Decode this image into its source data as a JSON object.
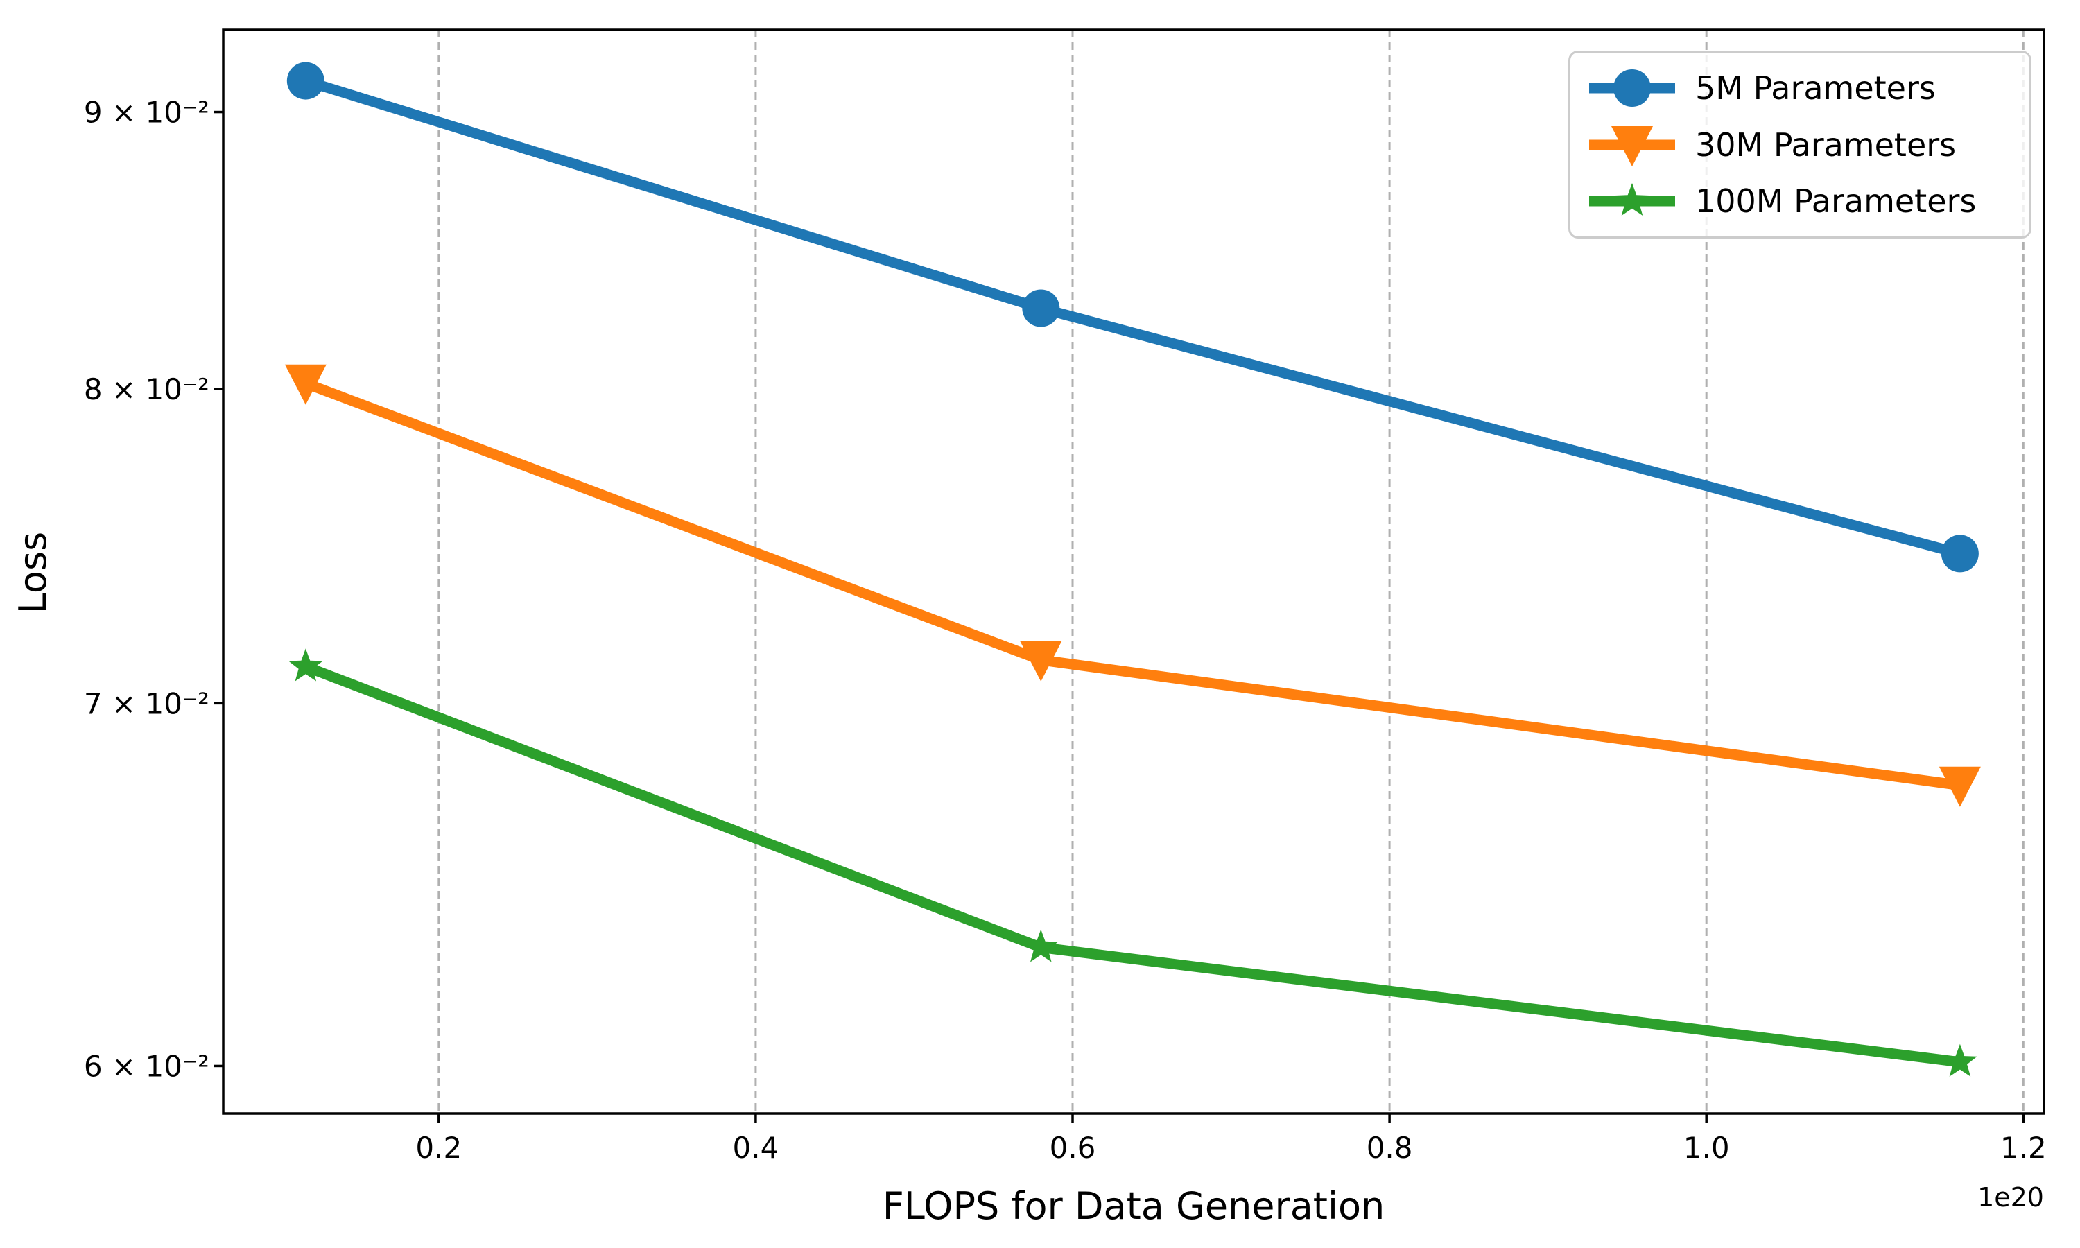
{
  "figure": {
    "background": "#ffffff",
    "spine_color": "#000000",
    "tick_color": "#000000"
  },
  "chart_data": {
    "type": "line",
    "title": "",
    "xlabel": "FLOPS for Data Generation",
    "ylabel": "Loss",
    "x_offset_text": "1e20",
    "x_scale": "linear",
    "y_scale": "log",
    "xlim": [
      6.4e+18,
      1.213e+20
    ],
    "ylim": [
      0.0588,
      0.0932
    ],
    "x_ticks": [
      2e+19,
      4e+19,
      6e+19,
      8e+19,
      1e+20,
      1.2e+20
    ],
    "x_tick_labels": [
      "0.2",
      "0.4",
      "0.6",
      "0.8",
      "1.0",
      "1.2"
    ],
    "y_ticks": [
      0.09,
      0.08,
      0.07,
      0.06
    ],
    "y_tick_labels": [
      "9 × 10⁻²",
      "8 × 10⁻²",
      "7 × 10⁻²",
      "6 × 10⁻²"
    ],
    "grid": {
      "axis": "x",
      "style": "dashed",
      "color": "#b0b0b0"
    },
    "legend": {
      "position": "upper right"
    },
    "x": [
      1.16e+19,
      5.8e+19,
      1.16e+20
    ],
    "series": [
      {
        "name": "5M Parameters",
        "color": "#1f77b4",
        "marker": "circle",
        "values": [
          0.0912,
          0.0828,
          0.0746
        ]
      },
      {
        "name": "30M Parameters",
        "color": "#ff7f0e",
        "marker": "triangle-down",
        "values": [
          0.0802,
          0.0713,
          0.0676
        ]
      },
      {
        "name": "100M Parameters",
        "color": "#2ca02c",
        "marker": "star",
        "values": [
          0.0711,
          0.0631,
          0.0601
        ]
      }
    ]
  }
}
